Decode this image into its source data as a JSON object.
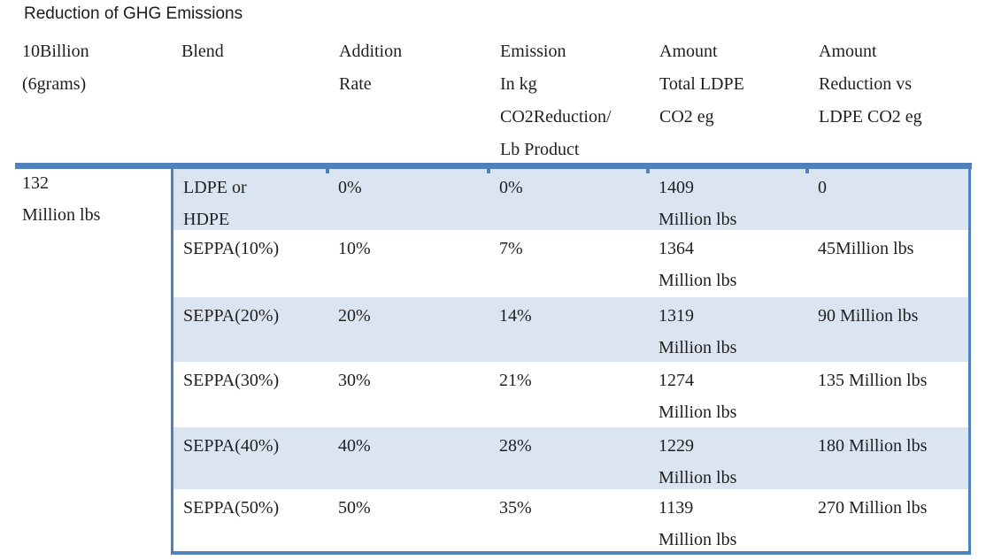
{
  "title": "Reduction of GHG Emissions",
  "colors": {
    "accent_border": "#4f81bd",
    "row_shade": "#dbe5f1",
    "text": "#1f1f1f"
  },
  "header": {
    "columns": [
      {
        "lines": [
          "10Billion",
          "(6grams)"
        ]
      },
      {
        "lines": [
          "Blend"
        ]
      },
      {
        "lines": [
          "Addition",
          "Rate"
        ]
      },
      {
        "lines": [
          "Emission",
          "In kg",
          "CO2Reduction/",
          "Lb Product"
        ]
      },
      {
        "lines": [
          "Amount",
          "Total LDPE",
          "CO2 eg"
        ]
      },
      {
        "lines": [
          "Amount",
          "Reduction vs",
          "LDPE CO2 eg"
        ]
      }
    ]
  },
  "row_label": {
    "lines": [
      "132",
      "Million lbs"
    ]
  },
  "table": {
    "rows": [
      {
        "cells": [
          [
            "LDPE or",
            "HDPE"
          ],
          [
            "0%"
          ],
          [
            "0%"
          ],
          [
            "1409",
            "Million lbs"
          ],
          [
            "0"
          ]
        ]
      },
      {
        "cells": [
          [
            "SEPPA(10%)"
          ],
          [
            "10%"
          ],
          [
            "7%"
          ],
          [
            "1364",
            "Million lbs"
          ],
          [
            "45Million lbs"
          ]
        ]
      },
      {
        "cells": [
          [
            "SEPPA(20%)"
          ],
          [
            "20%"
          ],
          [
            "14%"
          ],
          [
            "1319",
            "Million lbs"
          ],
          [
            "90 Million lbs"
          ]
        ]
      },
      {
        "cells": [
          [
            "SEPPA(30%)"
          ],
          [
            "30%"
          ],
          [
            "21%"
          ],
          [
            "1274",
            "Million lbs"
          ],
          [
            "135 Million lbs"
          ]
        ]
      },
      {
        "cells": [
          [
            "SEPPA(40%)"
          ],
          [
            "40%"
          ],
          [
            "28%"
          ],
          [
            "1229",
            "Million lbs"
          ],
          [
            "180 Million lbs"
          ]
        ]
      },
      {
        "cells": [
          [
            "SEPPA(50%)"
          ],
          [
            "50%"
          ],
          [
            "35%"
          ],
          [
            "1139",
            "Million lbs"
          ],
          [
            "270 Million lbs"
          ]
        ]
      }
    ]
  }
}
